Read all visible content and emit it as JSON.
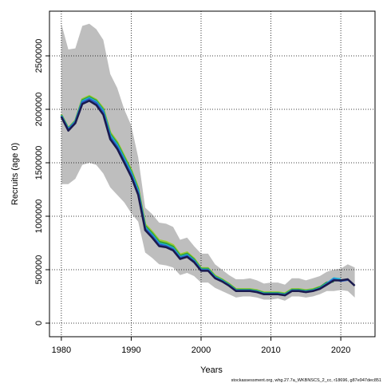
{
  "chart_data": {
    "type": "line",
    "xlabel": "Years",
    "ylabel": "Recruits (age 0)",
    "footer": "stockassessment.org, whg.27.7a_WKBNSCS_2_cc, r18696, g87e947dec851",
    "x": [
      1980,
      1981,
      1982,
      1983,
      1984,
      1985,
      1986,
      1987,
      1988,
      1989,
      1990,
      1991,
      1992,
      1993,
      1994,
      1995,
      1996,
      1997,
      1998,
      1999,
      2000,
      2001,
      2002,
      2003,
      2004,
      2005,
      2006,
      2007,
      2008,
      2009,
      2010,
      2011,
      2012,
      2013,
      2014,
      2015,
      2016,
      2017,
      2018,
      2019,
      2020,
      2021,
      2022
    ],
    "xlim": [
      1978.3,
      2024.9
    ],
    "xticks": [
      1980,
      1990,
      2000,
      2010,
      2020
    ],
    "ylim": [
      -127000,
      2918000
    ],
    "yticks": [
      0,
      500000,
      1000000,
      1500000,
      2000000,
      2500000
    ],
    "grid": true,
    "band": {
      "color": "#bebebe",
      "upper": [
        2800000,
        2560000,
        2570000,
        2780000,
        2800000,
        2750000,
        2650000,
        2330000,
        2200000,
        2000000,
        1850000,
        1550000,
        1080000,
        1020000,
        940000,
        930000,
        900000,
        780000,
        800000,
        720000,
        650000,
        650000,
        550000,
        500000,
        450000,
        410000,
        410000,
        420000,
        400000,
        370000,
        380000,
        380000,
        360000,
        420000,
        420000,
        400000,
        420000,
        440000,
        480000,
        500000,
        510000,
        550000,
        520000
      ],
      "lower": [
        1300000,
        1300000,
        1350000,
        1480000,
        1500000,
        1480000,
        1400000,
        1270000,
        1200000,
        1130000,
        1030000,
        950000,
        660000,
        610000,
        550000,
        540000,
        520000,
        450000,
        470000,
        440000,
        380000,
        380000,
        330000,
        300000,
        270000,
        240000,
        250000,
        250000,
        240000,
        220000,
        220000,
        230000,
        210000,
        250000,
        250000,
        240000,
        250000,
        270000,
        300000,
        300000,
        310000,
        300000,
        240000
      ]
    },
    "series": [
      {
        "color": "#9acd32",
        "values": [
          1950000,
          1825000,
          1895000,
          2095000,
          2125000,
          2090000,
          2010000,
          1785000,
          1695000,
          1565000,
          1435000,
          1265000,
          925000,
          855000,
          775000,
          760000,
          730000,
          642000,
          662000,
          605000,
          515000,
          515000,
          445000,
          410000,
          368000,
          318000,
          318000,
          318000,
          308000,
          288000,
          288000,
          288000,
          278000,
          318000,
          318000,
          308000,
          318000,
          340000,
          null,
          null,
          null,
          null,
          null
        ]
      },
      {
        "color": "#2e9e3e",
        "values": [
          1945000,
          1820000,
          1890000,
          2085000,
          2115000,
          2080000,
          1995000,
          1770000,
          1680000,
          1550000,
          1420000,
          1250000,
          910000,
          840000,
          760000,
          745000,
          715000,
          630000,
          650000,
          595000,
          508000,
          508000,
          437000,
          404000,
          362000,
          312000,
          312000,
          312000,
          302000,
          282000,
          282000,
          282000,
          272000,
          312000,
          312000,
          302000,
          312000,
          335000,
          380000,
          390000,
          null,
          null,
          null
        ]
      },
      {
        "color": "#1fb5d6",
        "values": [
          1940000,
          1815000,
          1885000,
          2075000,
          2105000,
          2070000,
          1985000,
          1755000,
          1665000,
          1535000,
          1405000,
          1235000,
          895000,
          825000,
          745000,
          730000,
          700000,
          618000,
          638000,
          585000,
          500000,
          500000,
          430000,
          398000,
          356000,
          306000,
          306000,
          306000,
          296000,
          276000,
          276000,
          276000,
          266000,
          306000,
          305000,
          296000,
          306000,
          326000,
          370000,
          420000,
          410000,
          null,
          null
        ]
      },
      {
        "color": "#2b5cc4",
        "values": [
          1935000,
          1810000,
          1880000,
          2065000,
          2095000,
          2060000,
          1970000,
          1740000,
          1650000,
          1520000,
          1390000,
          1220000,
          885000,
          815000,
          735000,
          720000,
          690000,
          610000,
          630000,
          578000,
          495000,
          495000,
          425000,
          393000,
          352000,
          303000,
          303000,
          303000,
          292000,
          272000,
          272000,
          272000,
          262000,
          303000,
          302000,
          292000,
          302000,
          322000,
          365000,
          410000,
          395000,
          405000,
          null
        ]
      },
      {
        "color": "#1a1a4e",
        "values": [
          1930000,
          1800000,
          1870000,
          2050000,
          2080000,
          2040000,
          1950000,
          1720000,
          1630000,
          1500000,
          1370000,
          1200000,
          870000,
          800000,
          720000,
          710000,
          680000,
          600000,
          620000,
          570000,
          490000,
          490000,
          420000,
          390000,
          350000,
          300000,
          300000,
          300000,
          290000,
          270000,
          270000,
          270000,
          260000,
          300000,
          300000,
          290000,
          300000,
          320000,
          360000,
          400000,
          400000,
          410000,
          350000
        ]
      }
    ]
  }
}
